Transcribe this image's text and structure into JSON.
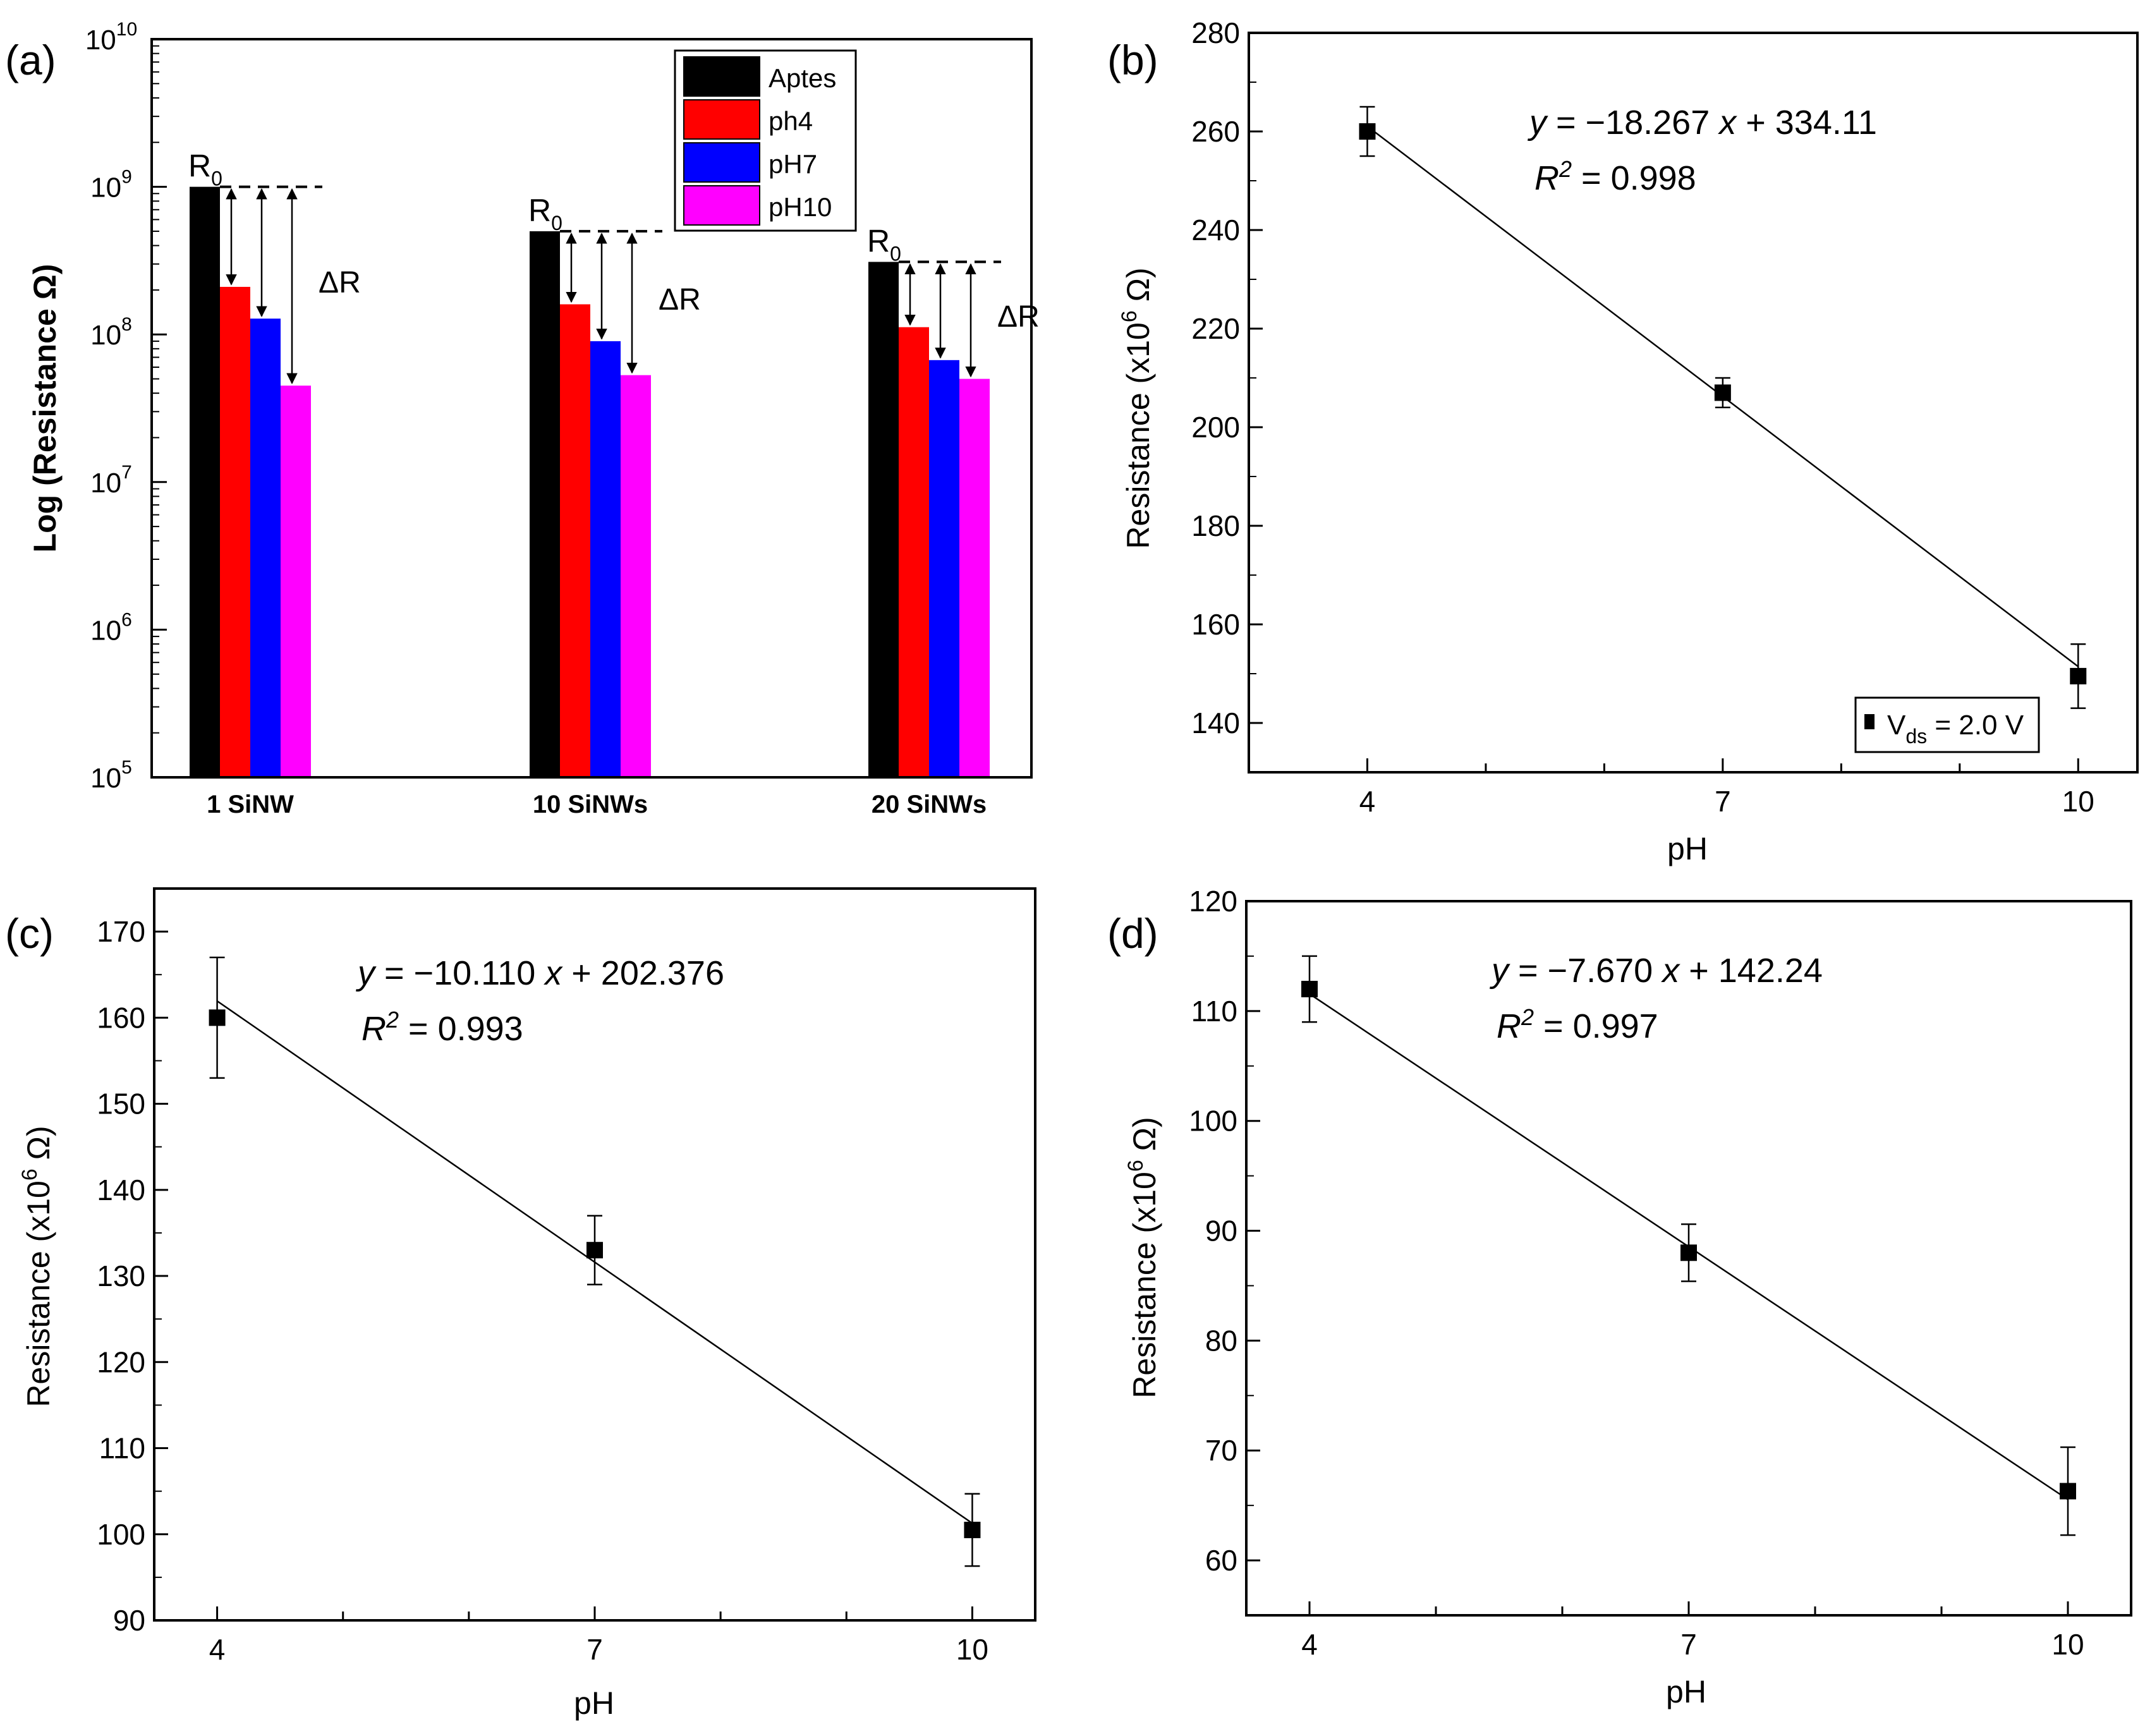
{
  "chart_data": [
    {
      "panel": "(a)",
      "type": "bar",
      "scale": "log",
      "ylabel": "Log (Resistance Ω)",
      "ylim": [
        100000,
        10000000000
      ],
      "yticks": [
        {
          "value": 100000,
          "base": "10",
          "exp": "5"
        },
        {
          "value": 1000000,
          "base": "10",
          "exp": "6"
        },
        {
          "value": 10000000,
          "base": "10",
          "exp": "7"
        },
        {
          "value": 100000000,
          "base": "10",
          "exp": "8"
        },
        {
          "value": 1000000000,
          "base": "10",
          "exp": "9"
        },
        {
          "value": 10000000000,
          "base": "10",
          "exp": "10"
        }
      ],
      "categories": [
        "1 SiNW",
        "10 SiNWs",
        "20 SiNWs"
      ],
      "series": [
        {
          "name": "Aptes",
          "color": "#000000",
          "values": [
            1000000000,
            500000000,
            310000000
          ]
        },
        {
          "name": "ph4",
          "color": "#ff0000",
          "values": [
            210000000,
            160000000,
            112000000
          ]
        },
        {
          "name": "pH7",
          "color": "#0000ff",
          "values": [
            128000000,
            90000000,
            67000000
          ]
        },
        {
          "name": "pH10",
          "color": "#ff00ff",
          "values": [
            45000000,
            53000000,
            50000000
          ]
        }
      ],
      "annotations": {
        "r0_base": "R",
        "r0_sub": "0",
        "delta": "ΔR"
      },
      "legend": "top-right"
    },
    {
      "panel": "(b)",
      "type": "scatter",
      "xlabel": "pH",
      "ylabel": "Resistance (x10",
      "ylabel_exp": "6",
      "ylabel_unit": " Ω)",
      "xlim": [
        3.0,
        10.5
      ],
      "ylim": [
        130,
        280
      ],
      "xticks": [
        4,
        7,
        10
      ],
      "yticks": [
        140,
        160,
        180,
        200,
        220,
        240,
        260,
        280
      ],
      "x": [
        4,
        7,
        10
      ],
      "y": [
        260,
        207,
        149.5
      ],
      "yerr": [
        5,
        3,
        6.5
      ],
      "fit": {
        "slope": -18.267,
        "intercept": 334.11
      },
      "equation": {
        "y": "y",
        "mid": " = −18.267 ",
        "x": "x",
        "tail": " + 334.11",
        "r": "R",
        "r_exp": "2",
        "r_val": " = 0.998"
      },
      "legend_label": {
        "main": "V",
        "sub": "ds",
        "rest": " = 2.0 V"
      }
    },
    {
      "panel": "(c)",
      "type": "scatter",
      "xlabel": "pH",
      "ylabel": "Resistance (x10",
      "ylabel_exp": "6",
      "ylabel_unit": " Ω)",
      "xlim": [
        3.5,
        10.5
      ],
      "ylim": [
        90,
        175
      ],
      "xticks": [
        4,
        7,
        10
      ],
      "yticks": [
        90,
        100,
        110,
        120,
        130,
        140,
        150,
        160,
        170
      ],
      "x": [
        4,
        7,
        10
      ],
      "y": [
        160,
        133,
        100.5
      ],
      "yerr": [
        7,
        4,
        4.2
      ],
      "fit": {
        "slope": -10.11,
        "intercept": 202.376
      },
      "equation": {
        "y": "y",
        "mid": " = −10.110 ",
        "x": "x",
        "tail": " + 202.376",
        "r": "R",
        "r_exp": "2",
        "r_val": " = 0.993"
      }
    },
    {
      "panel": "(d)",
      "type": "scatter",
      "xlabel": "pH",
      "ylabel": "Resistance (x10",
      "ylabel_exp": "6",
      "ylabel_unit": " Ω)",
      "xlim": [
        3.5,
        10.5
      ],
      "ylim": [
        55,
        120
      ],
      "xticks": [
        4,
        7,
        10
      ],
      "yticks": [
        60,
        70,
        80,
        90,
        100,
        110,
        120
      ],
      "x": [
        4,
        7,
        10
      ],
      "y": [
        112,
        88,
        66.3
      ],
      "yerr": [
        3,
        2.6,
        4
      ],
      "fit": {
        "slope": -7.67,
        "intercept": 142.24
      },
      "equation": {
        "y": "y",
        "mid": " = −7.670 ",
        "x": "x",
        "tail": " + 142.24",
        "r": "R",
        "r_exp": "2",
        "r_val": " = 0.997"
      }
    }
  ]
}
